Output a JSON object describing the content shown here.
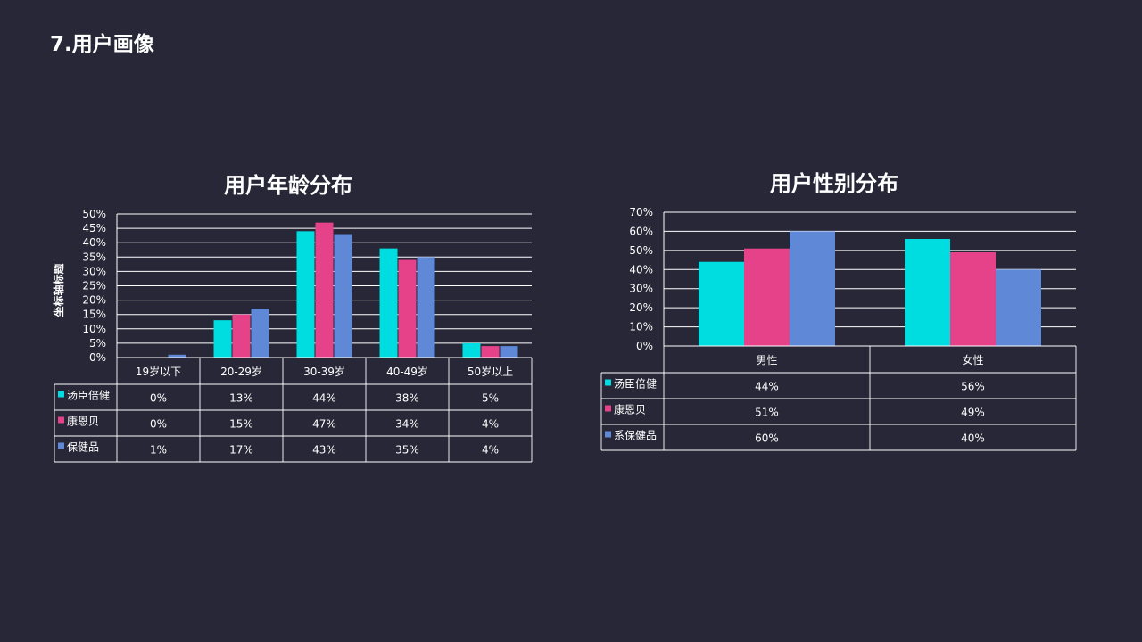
{
  "page": {
    "title": "7.用户画像"
  },
  "colors": {
    "background": "#282737",
    "series": [
      "#00DDE0",
      "#E5428A",
      "#5F88D7"
    ],
    "grid": "#FFFFFF"
  },
  "chart_data": [
    {
      "type": "bar",
      "title": "用户年龄分布",
      "ylabel": "坐标轴标题",
      "xlabel": "",
      "ylim": [
        0,
        0.5
      ],
      "ytick_labels": [
        "0%",
        "5%",
        "10%",
        "15%",
        "20%",
        "25%",
        "30%",
        "35%",
        "40%",
        "45%",
        "50%"
      ],
      "categories": [
        "19岁以下",
        "20-29岁",
        "30-39岁",
        "40-49岁",
        "50岁以上"
      ],
      "series": [
        {
          "name": "汤臣倍健",
          "values": [
            0.0,
            0.13,
            0.44,
            0.38,
            0.05
          ],
          "labels": [
            "0%",
            "13%",
            "44%",
            "38%",
            "5%"
          ]
        },
        {
          "name": "康恩贝",
          "values": [
            0.0,
            0.15,
            0.47,
            0.34,
            0.04
          ],
          "labels": [
            "0%",
            "15%",
            "47%",
            "34%",
            "4%"
          ]
        },
        {
          "name": "保健品",
          "values": [
            0.01,
            0.17,
            0.43,
            0.35,
            0.04
          ],
          "labels": [
            "1%",
            "17%",
            "43%",
            "35%",
            "4%"
          ]
        }
      ],
      "grid": true,
      "data_table": true
    },
    {
      "type": "bar",
      "title": "用户性别分布",
      "ylabel": "",
      "xlabel": "",
      "ylim": [
        0,
        0.7
      ],
      "ytick_labels": [
        "0%",
        "10%",
        "20%",
        "30%",
        "40%",
        "50%",
        "60%",
        "70%"
      ],
      "categories": [
        "男性",
        "女性"
      ],
      "series": [
        {
          "name": "汤臣倍健",
          "values": [
            0.44,
            0.56
          ],
          "labels": [
            "44%",
            "56%"
          ]
        },
        {
          "name": "康恩贝",
          "values": [
            0.51,
            0.49
          ],
          "labels": [
            "51%",
            "49%"
          ]
        },
        {
          "name": "系保健品",
          "values": [
            0.6,
            0.4
          ],
          "labels": [
            "60%",
            "40%"
          ]
        }
      ],
      "grid": true,
      "data_table": true
    }
  ]
}
